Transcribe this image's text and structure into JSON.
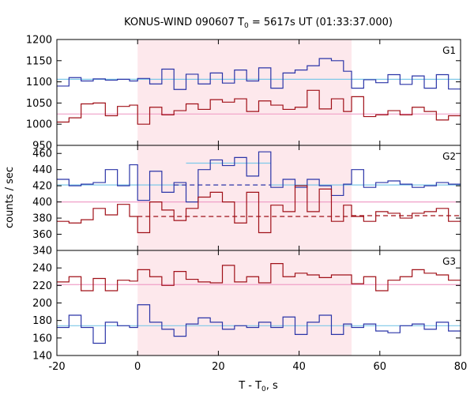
{
  "chart_data": {
    "type": "line",
    "title_main": "KONUS-WIND 090607 T",
    "title_sub": "0",
    "title_tail": " = 5617s UT (01:33:37.000)",
    "xlabel_main": "T - T",
    "xlabel_sub": "0",
    "xlabel_tail": ", s",
    "ylabel": "counts / sec",
    "xlim": [
      -20,
      80
    ],
    "xticks": [
      -20,
      0,
      20,
      40,
      60,
      80
    ],
    "highlight_interval": [
      0,
      53
    ],
    "colors": {
      "blue": "#2b35a8",
      "red": "#a01018",
      "blue_fit": "#7ec8e8",
      "red_fit": "#f0a0c8",
      "highlight": "#fde8ec"
    },
    "panels": [
      {
        "label": "G1",
        "ylim": [
          950,
          1200
        ],
        "yticks": [
          950,
          1000,
          1050,
          1100,
          1150,
          1200
        ],
        "bin_edges": [
          -20,
          -17,
          -14,
          -11,
          -8,
          -5,
          -2,
          0,
          3,
          6,
          9,
          12,
          15,
          18,
          21,
          24,
          27,
          30,
          33,
          36,
          39,
          42,
          45,
          48,
          51,
          53,
          56,
          59,
          62,
          65,
          68,
          71,
          74,
          77,
          80
        ],
        "series": [
          {
            "color": "blue",
            "values": [
              1090,
              1110,
              1102,
              1107,
              1104,
              1106,
              1102,
              1108,
              1095,
              1130,
              1082,
              1118,
              1095,
              1121,
              1097,
              1128,
              1102,
              1133,
              1085,
              1121,
              1128,
              1138,
              1155,
              1150,
              1125,
              1085,
              1105,
              1098,
              1117,
              1094,
              1114,
              1085,
              1117,
              1083
            ]
          },
          {
            "color": "red",
            "values": [
              1005,
              1015,
              1048,
              1050,
              1020,
              1042,
              1045,
              1000,
              1040,
              1022,
              1032,
              1048,
              1035,
              1058,
              1052,
              1060,
              1030,
              1055,
              1045,
              1035,
              1040,
              1080,
              1036,
              1060,
              1030,
              1065,
              1018,
              1022,
              1032,
              1022,
              1040,
              1030,
              1010,
              1020
            ]
          }
        ],
        "fits": [
          {
            "color": "blue_fit",
            "segments": [
              {
                "x": [
                  -20,
                  80
                ],
                "y": 1106,
                "dashed": false
              }
            ]
          },
          {
            "color": "red_fit",
            "segments": [
              {
                "x": [
                  -20,
                  80
                ],
                "y": 1024,
                "dashed": false
              }
            ]
          }
        ]
      },
      {
        "label": "G2",
        "ylim": [
          340,
          470
        ],
        "yticks": [
          340,
          360,
          380,
          400,
          420,
          440,
          460
        ],
        "bin_edges": [
          -20,
          -17,
          -14,
          -11,
          -8,
          -5,
          -2,
          0,
          3,
          6,
          9,
          12,
          15,
          18,
          21,
          24,
          27,
          30,
          33,
          36,
          39,
          42,
          45,
          48,
          51,
          53,
          56,
          59,
          62,
          65,
          68,
          71,
          74,
          77,
          80
        ],
        "series": [
          {
            "color": "blue",
            "values": [
              428,
              420,
              422,
              424,
              440,
              420,
              446,
              402,
              438,
              412,
              424,
              400,
              440,
              452,
              445,
              455,
              432,
              462,
              418,
              428,
              418,
              428,
              420,
              408,
              422,
              440,
              418,
              424,
              426,
              422,
              418,
              420,
              424,
              422
            ]
          },
          {
            "color": "red",
            "values": [
              376,
              374,
              378,
              392,
              384,
              397,
              382,
              362,
              400,
              390,
              377,
              392,
              406,
              412,
              400,
              374,
              412,
              362,
              396,
              388,
              420,
              388,
              416,
              376,
              396,
              382,
              376,
              388,
              386,
              380,
              386,
              388,
              392,
              376
            ]
          }
        ],
        "fits": [
          {
            "color": "blue_fit",
            "segments": [
              {
                "x": [
                  -20,
                  12
                ],
                "y": 421,
                "dashed": false
              },
              {
                "x": [
                  12,
                  33
                ],
                "y": 448,
                "dashed": false
              },
              {
                "x": [
                  33,
                  80
                ],
                "y": 421,
                "dashed": false
              }
            ]
          },
          {
            "color": "red_fit",
            "segments": [
              {
                "x": [
                  -20,
                  80
                ],
                "y": 400,
                "dashed": false
              }
            ]
          },
          {
            "color": "blue",
            "segments": [
              {
                "x": [
                  9,
                  33
                ],
                "y": 421,
                "dashed": true
              }
            ]
          },
          {
            "color": "red",
            "segments": [
              {
                "x": [
                  0,
                  53
                ],
                "y": 382,
                "dashed": true
              },
              {
                "x": [
                  53,
                  80
                ],
                "y": 383,
                "dashed": true
              }
            ]
          }
        ]
      },
      {
        "label": "G3",
        "ylim": [
          140,
          260
        ],
        "yticks": [
          140,
          160,
          180,
          200,
          220,
          240
        ],
        "bin_edges": [
          -20,
          -17,
          -14,
          -11,
          -8,
          -5,
          -2,
          0,
          3,
          6,
          9,
          12,
          15,
          18,
          21,
          24,
          27,
          30,
          33,
          36,
          39,
          42,
          45,
          48,
          51,
          53,
          56,
          59,
          62,
          65,
          68,
          71,
          74,
          77,
          80
        ],
        "series": [
          {
            "color": "blue",
            "values": [
              172,
              186,
              172,
              154,
              178,
              174,
              172,
              198,
              178,
              170,
              162,
              176,
              183,
              178,
              170,
              174,
              172,
              178,
              172,
              184,
              164,
              178,
              186,
              164,
              176,
              172,
              176,
              168,
              166,
              174,
              176,
              170,
              178,
              168
            ]
          },
          {
            "color": "red",
            "values": [
              224,
              230,
              214,
              228,
              214,
              226,
              225,
              238,
              230,
              220,
              236,
              227,
              224,
              223,
              243,
              224,
              230,
              223,
              245,
              230,
              234,
              232,
              229,
              232,
              232,
              222,
              230,
              214,
              226,
              230,
              238,
              234,
              232,
              226
            ]
          }
        ],
        "fits": [
          {
            "color": "blue_fit",
            "segments": [
              {
                "x": [
                  -20,
                  80
                ],
                "y": 174,
                "dashed": false
              }
            ]
          },
          {
            "color": "red_fit",
            "segments": [
              {
                "x": [
                  -20,
                  80
                ],
                "y": 221,
                "dashed": false
              }
            ]
          }
        ]
      }
    ]
  }
}
